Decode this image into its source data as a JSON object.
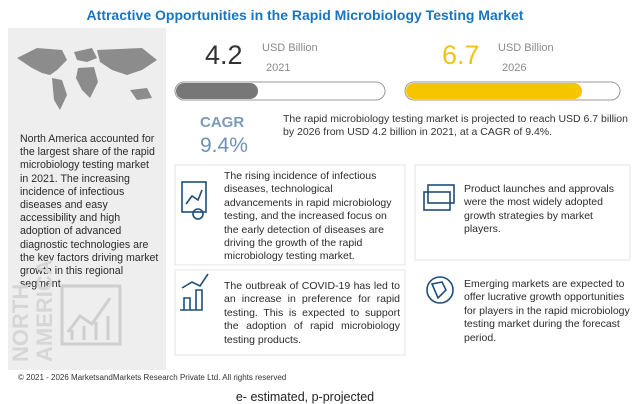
{
  "title": "Attractive Opportunities in the Rapid Microbiology Testing Market",
  "left_panel": {
    "text": "North America accounted for the largest share of the rapid microbiology testing market in 2021. The increasing incidence of infectious diseases and easy accessibility and high adoption of advanced diagnostic technologies are the key factors driving market growth in this regional segment.",
    "watermark": [
      "NORTH",
      "AMERICA"
    ]
  },
  "metrics": [
    {
      "value": "4.2",
      "unit": "USD Billion",
      "year": "2021"
    },
    {
      "value": "6.7",
      "unit": "USD Billion",
      "year": "2026"
    }
  ],
  "cagr": {
    "label": "CAGR",
    "value": "9.4%"
  },
  "summary": "The rapid microbiology testing market is projected to reach USD 6.7 billion by 2026 from USD 4.2 billion in 2021, at a CAGR of 9.4%.",
  "highlights": [
    "The rising incidence of infectious diseases, technological advancements in rapid microbiology testing, and the increased focus on the early detection of diseases are driving the growth of the rapid microbiology testing market.",
    "The outbreak of COVID-19 has led to an increase in preference for rapid testing. This is expected to support the adoption of rapid microbiology testing products.",
    "Product launches and approvals were the most widely adopted growth strategies by market players.",
    "Emerging markets are expected to offer lucrative growth opportunities for players in the rapid microbiology testing market during the forecast period."
  ],
  "footer": "© 2021 - 2026 MarketsandMarkets Research Private Ltd. All rights reserved",
  "caption": "e- estimated, p-projected"
}
